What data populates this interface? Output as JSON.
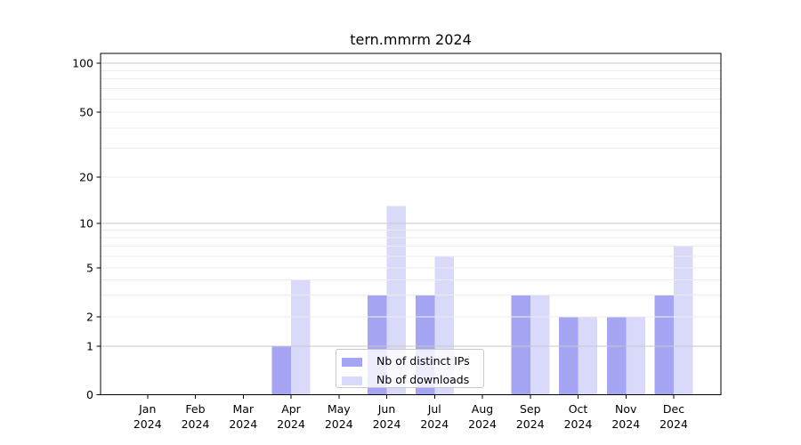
{
  "chart_data": {
    "type": "bar",
    "title": "tern.mmrm 2024",
    "categories": [
      "Jan",
      "Feb",
      "Mar",
      "Apr",
      "May",
      "Jun",
      "Jul",
      "Aug",
      "Sep",
      "Oct",
      "Nov",
      "Dec"
    ],
    "x_tick_second_line": "2024",
    "series": [
      {
        "name": "Nb of distinct IPs",
        "color": "#a5a5f3",
        "values": [
          0,
          0,
          0,
          1,
          0,
          3,
          3,
          0,
          3,
          2,
          2,
          3
        ]
      },
      {
        "name": "Nb of downloads",
        "color": "#d9d9fa",
        "values": [
          0,
          0,
          0,
          4,
          0,
          13,
          6,
          0,
          3,
          2,
          2,
          7
        ]
      }
    ],
    "xlabel": "",
    "ylabel": "",
    "yscale": "log-like",
    "ylim": [
      0,
      120
    ],
    "yticks": [
      0,
      1,
      2,
      5,
      10,
      20,
      50,
      100
    ],
    "yticks_minor": [
      3,
      4,
      6,
      7,
      8,
      9,
      30,
      40,
      60,
      70,
      80,
      90
    ],
    "grid": true,
    "legend_position": "inside-lower-center",
    "colors": {
      "axis": "#000000",
      "gridline_decade": "#c8c8c8",
      "gridline_minor": "#ececec",
      "background": "#ffffff"
    }
  }
}
